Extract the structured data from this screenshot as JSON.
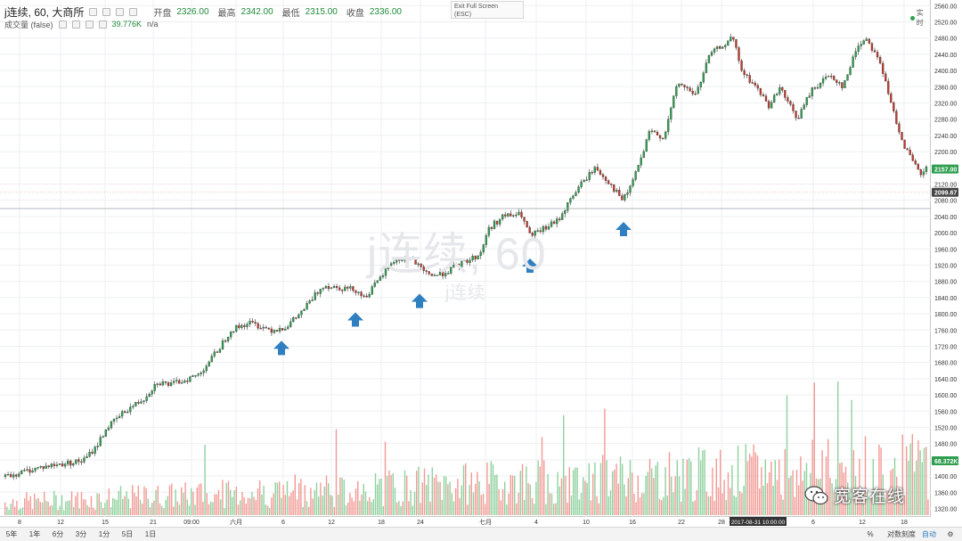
{
  "legend": {
    "symbol": "j连续, 60, 大商所",
    "ohlc": [
      {
        "label": "开盘",
        "value": "2326.00"
      },
      {
        "label": "最高",
        "value": "2342.00"
      },
      {
        "label": "最低",
        "value": "2315.00"
      },
      {
        "label": "收盘",
        "value": "2336.00"
      }
    ],
    "volume_label": "成交量 (false)",
    "volume_value": "39.776K",
    "volume_extra": "n/a"
  },
  "exit_fullscreen": {
    "line1": "Exit Full Screen",
    "line2": "(ESC)"
  },
  "live_label": "实时",
  "watermark": {
    "big": "j连续, 60",
    "small": "j连续"
  },
  "price_axis": {
    "ticks": [
      "2560.00",
      "2520.00",
      "2480.00",
      "2440.00",
      "2400.00",
      "2360.00",
      "2320.00",
      "2280.00",
      "2240.00",
      "2200.00",
      "2160.00",
      "2120.00",
      "2080.00",
      "2040.00",
      "2000.00",
      "1960.00",
      "1920.00",
      "1880.00",
      "1840.00",
      "1800.00",
      "1760.00",
      "1720.00",
      "1680.00",
      "1640.00",
      "1600.00",
      "1560.00",
      "1520.00",
      "1480.00",
      "1440.00",
      "1400.00",
      "1360.00",
      "1320.00"
    ],
    "last_price": "2157.00",
    "crosshair_price": "2099.67",
    "last_volume": "68.372K"
  },
  "time_axis": {
    "labels": [
      "8",
      "12",
      "15",
      "21",
      "09:00",
      "六月",
      "6",
      "12",
      "18",
      "24",
      "七月",
      "4",
      "10",
      "16",
      "22",
      "28",
      "6",
      "12",
      "18"
    ],
    "cursor_time": "2017-08-31 10:00:00"
  },
  "timeframes": [
    "5年",
    "1年",
    "6分",
    "3分",
    "1分",
    "5日",
    "1日"
  ],
  "bottom_right": {
    "percent": "%",
    "log": "对数刻度",
    "auto": "自动",
    "settings": "⚙"
  },
  "branding": {
    "wechat_text": "宽客在线"
  },
  "colors": {
    "up": "#2e9e4f",
    "down": "#c0392b",
    "volume_up": "#8fd19e",
    "volume_down": "#f29a94",
    "arrow": "#2f7fc1"
  },
  "chart_data": {
    "type": "candlestick",
    "title": "j连续, 60, 大商所",
    "ylim": [
      1300,
      2570
    ],
    "close_path": [
      [
        0,
        1398
      ],
      [
        0.035,
        1420
      ],
      [
        0.062,
        1430
      ],
      [
        0.085,
        1438
      ],
      [
        0.098,
        1470
      ],
      [
        0.11,
        1518
      ],
      [
        0.13,
        1560
      ],
      [
        0.15,
        1590
      ],
      [
        0.165,
        1632
      ],
      [
        0.18,
        1625
      ],
      [
        0.21,
        1650
      ],
      [
        0.23,
        1708
      ],
      [
        0.245,
        1760
      ],
      [
        0.265,
        1778
      ],
      [
        0.29,
        1760
      ],
      [
        0.305,
        1768
      ],
      [
        0.32,
        1800
      ],
      [
        0.345,
        1870
      ],
      [
        0.38,
        1860
      ],
      [
        0.39,
        1840
      ],
      [
        0.405,
        1880
      ],
      [
        0.42,
        1930
      ],
      [
        0.44,
        1938
      ],
      [
        0.455,
        1900
      ],
      [
        0.47,
        1895
      ],
      [
        0.48,
        1905
      ],
      [
        0.5,
        1930
      ],
      [
        0.515,
        1945
      ],
      [
        0.525,
        2010
      ],
      [
        0.54,
        2040
      ],
      [
        0.56,
        2045
      ],
      [
        0.57,
        1990
      ],
      [
        0.585,
        2010
      ],
      [
        0.6,
        2030
      ],
      [
        0.62,
        2105
      ],
      [
        0.64,
        2160
      ],
      [
        0.655,
        2125
      ],
      [
        0.67,
        2080
      ],
      [
        0.675,
        2095
      ],
      [
        0.69,
        2180
      ],
      [
        0.7,
        2250
      ],
      [
        0.715,
        2235
      ],
      [
        0.73,
        2370
      ],
      [
        0.75,
        2340
      ],
      [
        0.765,
        2440
      ],
      [
        0.79,
        2480
      ],
      [
        0.8,
        2395
      ],
      [
        0.815,
        2360
      ],
      [
        0.83,
        2310
      ],
      [
        0.84,
        2360
      ],
      [
        0.85,
        2320
      ],
      [
        0.86,
        2280
      ],
      [
        0.875,
        2350
      ],
      [
        0.895,
        2390
      ],
      [
        0.91,
        2360
      ],
      [
        0.925,
        2460
      ],
      [
        0.935,
        2480
      ],
      [
        0.95,
        2420
      ],
      [
        0.96,
        2330
      ],
      [
        0.975,
        2220
      ],
      [
        0.985,
        2175
      ],
      [
        0.995,
        2140
      ],
      [
        1.0,
        2157
      ]
    ],
    "highlight_arrows_at": [
      1762,
      1832,
      1878,
      1965,
      2055
    ],
    "last_price": 2157,
    "crosshair_price": 2099.67
  }
}
